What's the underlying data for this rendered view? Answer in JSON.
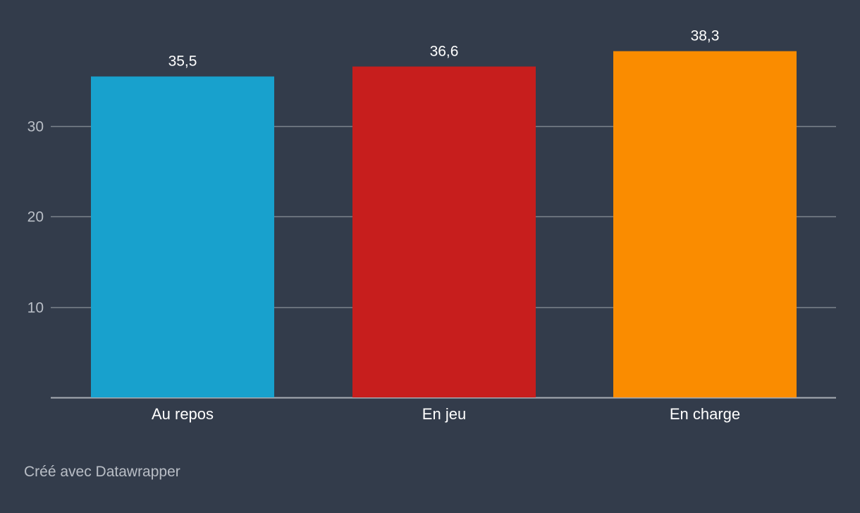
{
  "chart_data": {
    "type": "bar",
    "categories": [
      "Au repos",
      "En jeu",
      "En charge"
    ],
    "values": [
      35.5,
      36.6,
      38.3
    ],
    "value_labels": [
      "35,5",
      "36,6",
      "38,3"
    ],
    "colors": [
      "#18a1cd",
      "#c71e1d",
      "#fa8c00"
    ],
    "ylim": [
      0,
      40
    ],
    "yticks": [
      10,
      20,
      30
    ],
    "ytick_labels": [
      "10",
      "20",
      "30"
    ],
    "grid": true,
    "title": "",
    "xlabel": "",
    "ylabel": ""
  },
  "theme": {
    "background": "#333c4b",
    "text": "#ffffff",
    "muted_text": "#b9bec6",
    "grid": "#7d848d",
    "axis": "#a9aeb5"
  },
  "footer": {
    "credit": "Créé avec Datawrapper"
  }
}
